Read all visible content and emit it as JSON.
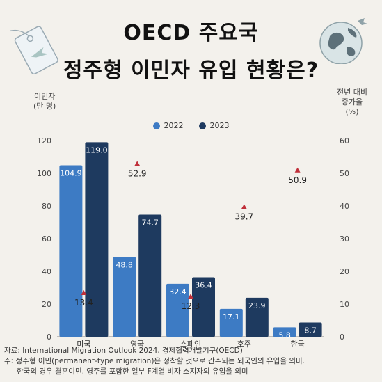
{
  "header": {
    "title_line1": "OECD 주요국",
    "title_line2": "정주형 이민자 유입 현황은?"
  },
  "axes": {
    "left_caption_line1": "이민자",
    "left_caption_line2": "(만 명)",
    "right_caption_line1": "전년 대비",
    "right_caption_line2": "증가율",
    "right_caption_line3": "(%)"
  },
  "colors": {
    "series_2022": "#3d7bc4",
    "series_2023": "#1e3a5f",
    "marker": "#c0303a"
  },
  "chart_data": {
    "type": "bar",
    "categories": [
      "미국",
      "영국",
      "스페인",
      "호주",
      "한국"
    ],
    "series": [
      {
        "name": "2022",
        "values": [
          104.9,
          48.8,
          32.4,
          17.1,
          5.8
        ]
      },
      {
        "name": "2023",
        "values": [
          119.0,
          74.7,
          36.4,
          23.9,
          8.7
        ]
      }
    ],
    "growth_rate": {
      "values": [
        13.4,
        52.9,
        12.3,
        39.7,
        50.9
      ],
      "axis": "right"
    },
    "ylim": [
      0,
      120
    ],
    "yticks": [
      0,
      20,
      40,
      60,
      80,
      100,
      120
    ],
    "y2lim": [
      0,
      60
    ],
    "y2ticks": [
      0,
      10,
      20,
      30,
      40,
      50,
      60
    ],
    "legend_position": "top-center"
  },
  "footer": {
    "source": "자료: International Migration Outlook 2024, 경제협력개발기구(OECD)",
    "note_line1": "주: 정주형 이민(permanent-type migration)은 정착할 것으로 간주되는 외국인의 유입을 의미.",
    "note_line2": "한국의 경우 결혼이민, 영주를 포함한 일부 F계열 비자 소지자의 유입을 의미"
  }
}
